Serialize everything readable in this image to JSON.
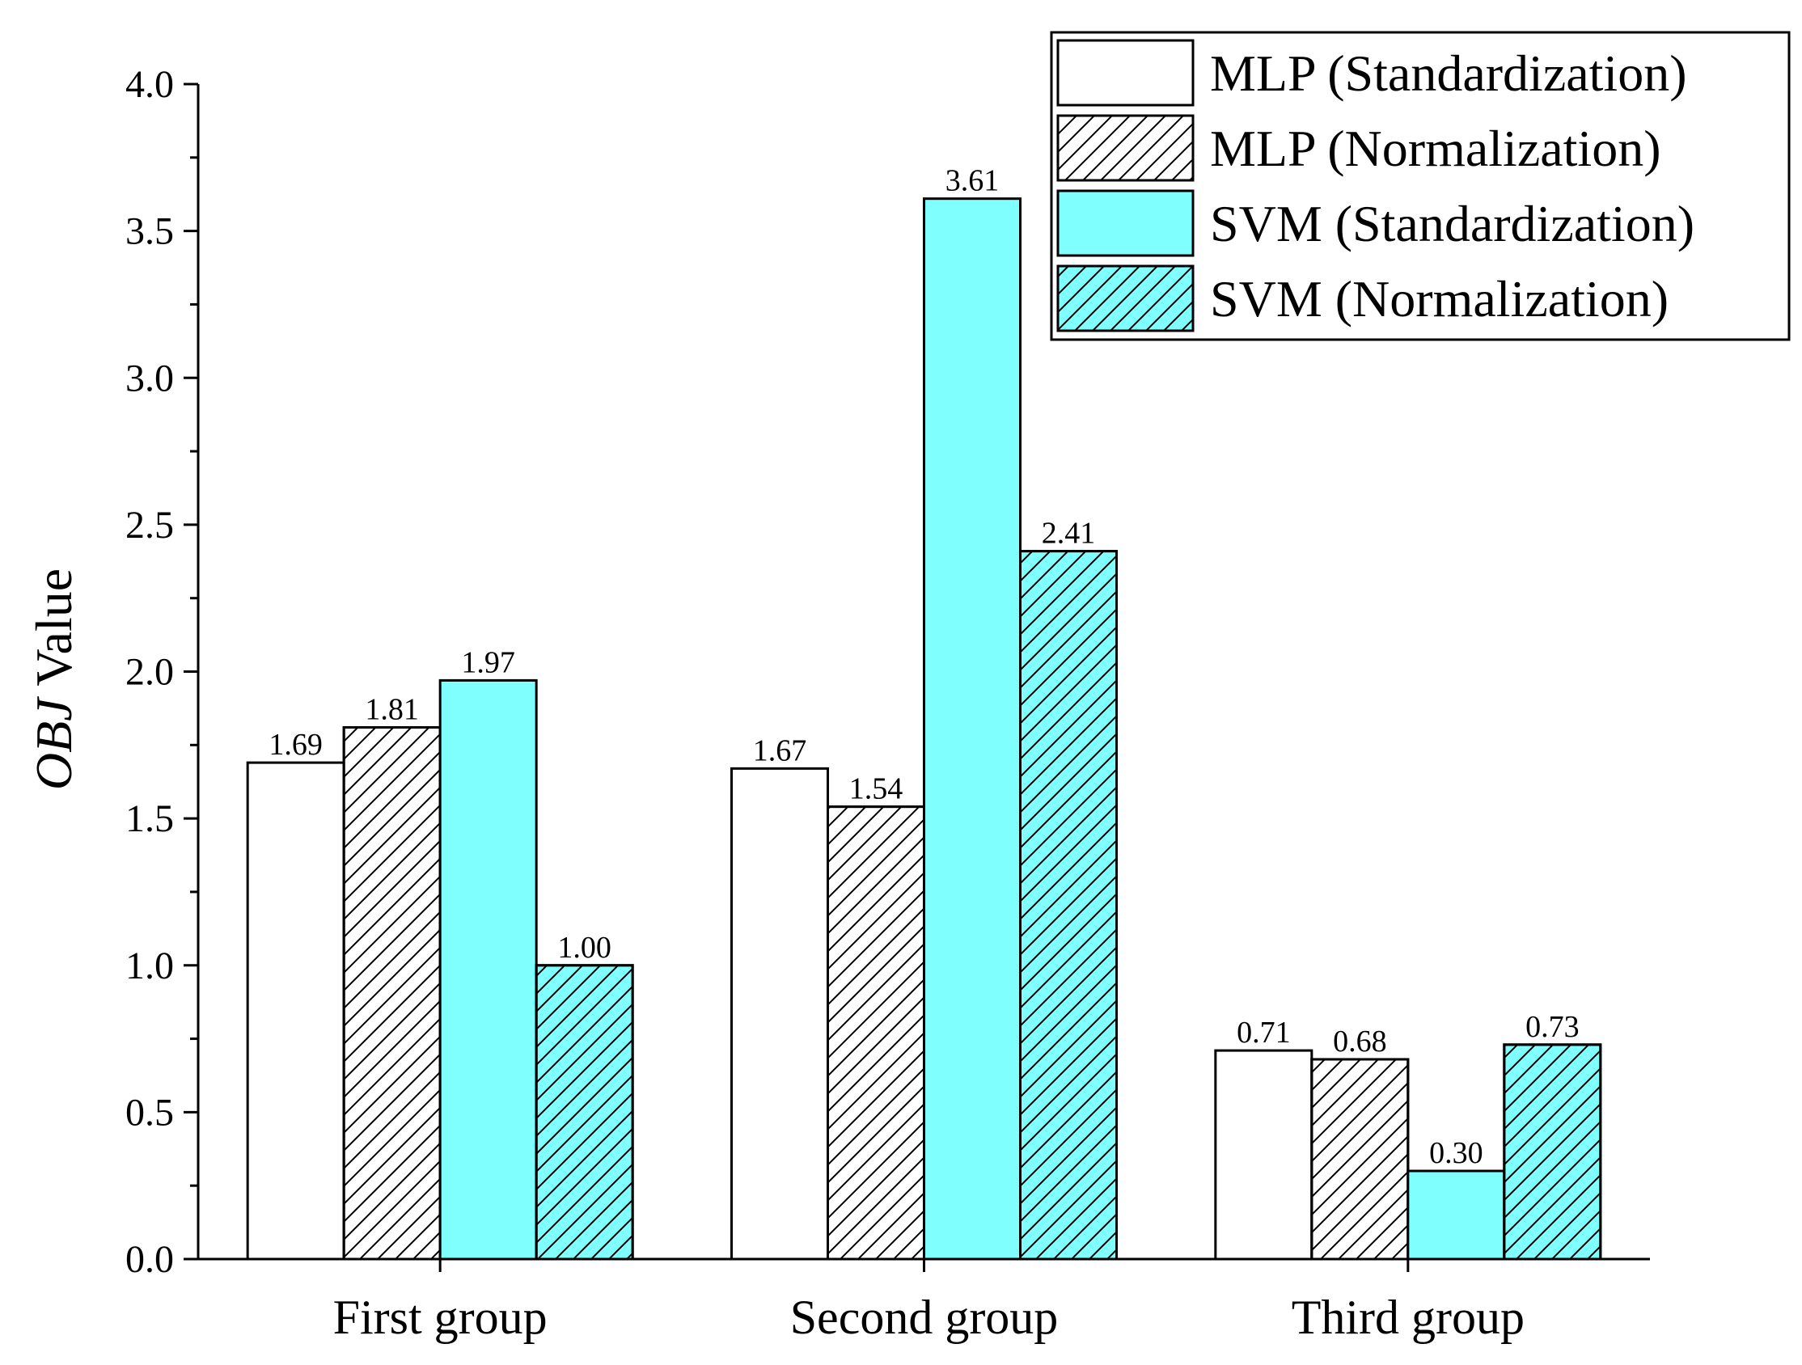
{
  "chart_data": {
    "type": "bar",
    "title": "",
    "xlabel": "",
    "ylabel": "Value",
    "ylabel_italic_part": "OBJ",
    "ylim": [
      0,
      4.0
    ],
    "ytick_step": 0.5,
    "ytick_labels": [
      "0.0",
      "0.5",
      "1.0",
      "1.5",
      "2.0",
      "2.5",
      "3.0",
      "3.5",
      "4.0"
    ],
    "grid": false,
    "legend_position": "top-right",
    "categories": [
      "First group",
      "Second group",
      "Third group"
    ],
    "series": [
      {
        "name": "MLP (Standardization)",
        "values": [
          1.69,
          1.67,
          0.71
        ],
        "fill": "#ffffff",
        "hatch": false
      },
      {
        "name": "MLP (Normalization)",
        "values": [
          1.81,
          1.54,
          0.68
        ],
        "fill": "#ffffff",
        "hatch": true
      },
      {
        "name": "SVM (Standardization)",
        "values": [
          1.97,
          3.61,
          0.3
        ],
        "fill": "#80ffff",
        "hatch": false
      },
      {
        "name": "SVM (Normalization)",
        "values": [
          1.0,
          2.41,
          0.73
        ],
        "fill": "#80ffff",
        "hatch": true
      }
    ],
    "data_labels": [
      [
        "1.69",
        "1.67",
        "0.71"
      ],
      [
        "1.81",
        "1.54",
        "0.68"
      ],
      [
        "1.97",
        "3.61",
        "0.30"
      ],
      [
        "1.00",
        "2.41",
        "0.73"
      ]
    ]
  }
}
